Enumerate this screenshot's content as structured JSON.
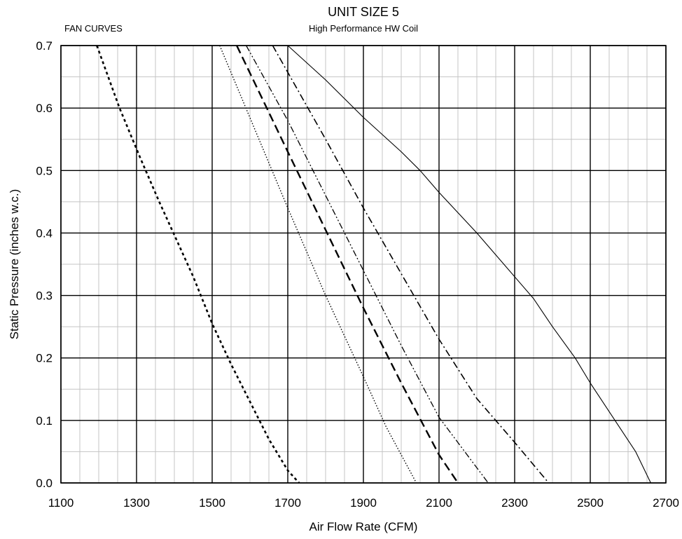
{
  "chart_data": {
    "type": "line",
    "title": "UNIT SIZE 5",
    "subtitle": "High Performance HW Coil",
    "corner_label": "FAN CURVES",
    "xlabel": "Air Flow Rate (CFM)",
    "ylabel": "Static Pressure (inches w.c.)",
    "xlim": [
      1100,
      2700
    ],
    "ylim": [
      0,
      0.7
    ],
    "x_major_ticks": [
      1100,
      1300,
      1500,
      1700,
      1900,
      2100,
      2300,
      2500,
      2700
    ],
    "x_tick_labels": [
      "1100",
      "1300",
      "1500",
      "1700",
      "1900",
      "2100",
      "2300",
      "2500",
      "2700"
    ],
    "x_minor_step": 50,
    "y_major_ticks": [
      0,
      0.1,
      0.2,
      0.3,
      0.4,
      0.5,
      0.6,
      0.7
    ],
    "y_tick_labels": [
      "0.0",
      "0.1",
      "0.2",
      "0.3",
      "0.4",
      "0.5",
      "0.6",
      "0.7"
    ],
    "y_minor_step": 0.05,
    "grid": true,
    "series": [
      {
        "style": "short-dash-thick",
        "points": [
          [
            1195,
            0.7
          ],
          [
            1255,
            0.6
          ],
          [
            1310,
            0.52
          ],
          [
            1360,
            0.45
          ],
          [
            1405,
            0.39
          ],
          [
            1450,
            0.33
          ],
          [
            1500,
            0.255
          ],
          [
            1550,
            0.19
          ],
          [
            1600,
            0.13
          ],
          [
            1650,
            0.07
          ],
          [
            1700,
            0.02
          ],
          [
            1730,
            0.0
          ]
        ]
      },
      {
        "style": "dotted",
        "points": [
          [
            1520,
            0.7
          ],
          [
            1700,
            0.44
          ],
          [
            1800,
            0.3
          ],
          [
            1900,
            0.17
          ],
          [
            1960,
            0.09
          ],
          [
            2040,
            0.0
          ]
        ]
      },
      {
        "style": "long-dash",
        "points": [
          [
            1565,
            0.7
          ],
          [
            1700,
            0.53
          ],
          [
            1800,
            0.405
          ],
          [
            1900,
            0.28
          ],
          [
            2000,
            0.16
          ],
          [
            2100,
            0.045
          ],
          [
            2150,
            0.0
          ]
        ]
      },
      {
        "style": "dash-dot-dot",
        "points": [
          [
            1590,
            0.7
          ],
          [
            1700,
            0.58
          ],
          [
            1800,
            0.46
          ],
          [
            1900,
            0.34
          ],
          [
            2000,
            0.22
          ],
          [
            2100,
            0.105
          ],
          [
            2230,
            0.0
          ]
        ]
      },
      {
        "style": "dash-dot",
        "points": [
          [
            1660,
            0.7
          ],
          [
            1800,
            0.55
          ],
          [
            1900,
            0.44
          ],
          [
            2000,
            0.335
          ],
          [
            2100,
            0.23
          ],
          [
            2200,
            0.135
          ],
          [
            2300,
            0.065
          ],
          [
            2390,
            0.0
          ]
        ]
      },
      {
        "style": "solid-thin",
        "points": [
          [
            1700,
            0.7
          ],
          [
            1800,
            0.645
          ],
          [
            1900,
            0.585
          ],
          [
            2000,
            0.53
          ],
          [
            2050,
            0.5
          ],
          [
            2100,
            0.465
          ],
          [
            2200,
            0.4
          ],
          [
            2300,
            0.33
          ],
          [
            2350,
            0.295
          ],
          [
            2400,
            0.25
          ],
          [
            2460,
            0.2
          ],
          [
            2500,
            0.16
          ],
          [
            2560,
            0.105
          ],
          [
            2620,
            0.05
          ],
          [
            2660,
            0.0
          ]
        ]
      }
    ]
  }
}
